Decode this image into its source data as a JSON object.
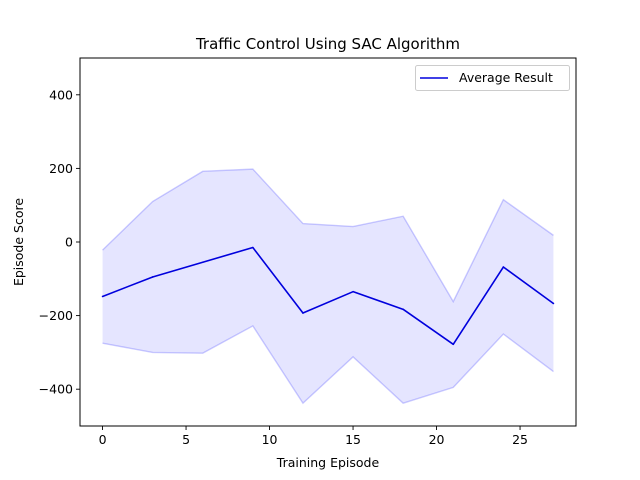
{
  "chart_data": {
    "type": "line",
    "title": "Traffic Control Using SAC Algorithm",
    "xlabel": "Training Episode",
    "ylabel": "Episode Score",
    "xlim": [
      -1.35,
      28.35
    ],
    "ylim": [
      -500,
      500
    ],
    "xticks": [
      0,
      5,
      10,
      15,
      20,
      25
    ],
    "yticks": [
      -400,
      -200,
      0,
      200,
      400
    ],
    "grid": false,
    "legend_position": "top-right",
    "x": [
      0,
      3,
      6,
      9,
      12,
      15,
      18,
      21,
      24,
      27
    ],
    "series": [
      {
        "name": "Average Result",
        "color": "#0000dd",
        "values": [
          -148,
          -95,
          -55,
          -15,
          -193,
          -135,
          -183,
          -278,
          -68,
          -167
        ],
        "band_upper": [
          -22,
          110,
          192,
          198,
          50,
          42,
          70,
          -162,
          115,
          18
        ],
        "band_lower": [
          -275,
          -300,
          -302,
          -228,
          -438,
          -312,
          -438,
          -395,
          -250,
          -352
        ],
        "band_color": "#0000ff"
      }
    ]
  }
}
